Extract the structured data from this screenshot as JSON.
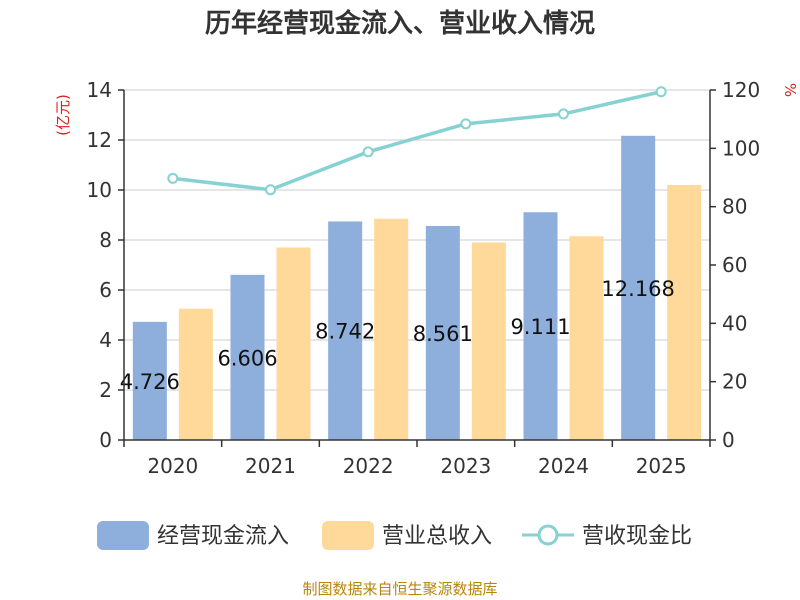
{
  "chart_data": {
    "type": "bar",
    "title": "历年经营现金流入、营业收入情况",
    "categories": [
      "2020",
      "2021",
      "2022",
      "2023",
      "2024",
      "2025"
    ],
    "series": [
      {
        "name": "经营现金流入",
        "kind": "bar",
        "axis": "left",
        "color": "#8eaedb",
        "values": [
          4.726,
          6.606,
          8.742,
          8.561,
          9.111,
          12.168
        ],
        "labels": [
          "4.726",
          "6.606",
          "8.742",
          "8.561",
          "9.111",
          "12.168"
        ]
      },
      {
        "name": "营业总收入",
        "kind": "bar",
        "axis": "left",
        "color": "#ffd99a",
        "values": [
          5.25,
          7.7,
          8.85,
          7.9,
          8.15,
          10.2
        ]
      },
      {
        "name": "营收现金比",
        "kind": "line",
        "axis": "right",
        "color": "#86d1d1",
        "values": [
          89.7,
          85.8,
          98.8,
          108.4,
          111.8,
          119.4
        ]
      }
    ],
    "y_left": {
      "label": "(亿元)",
      "min": 0,
      "max": 14,
      "ticks": [
        0,
        2,
        4,
        6,
        8,
        10,
        12,
        14
      ]
    },
    "y_right": {
      "label": "%",
      "min": 0,
      "max": 120,
      "ticks": [
        0,
        20,
        40,
        60,
        80,
        100,
        120
      ]
    },
    "grid": true,
    "legend_position": "bottom"
  },
  "source": "制图数据来自恒生聚源数据库"
}
